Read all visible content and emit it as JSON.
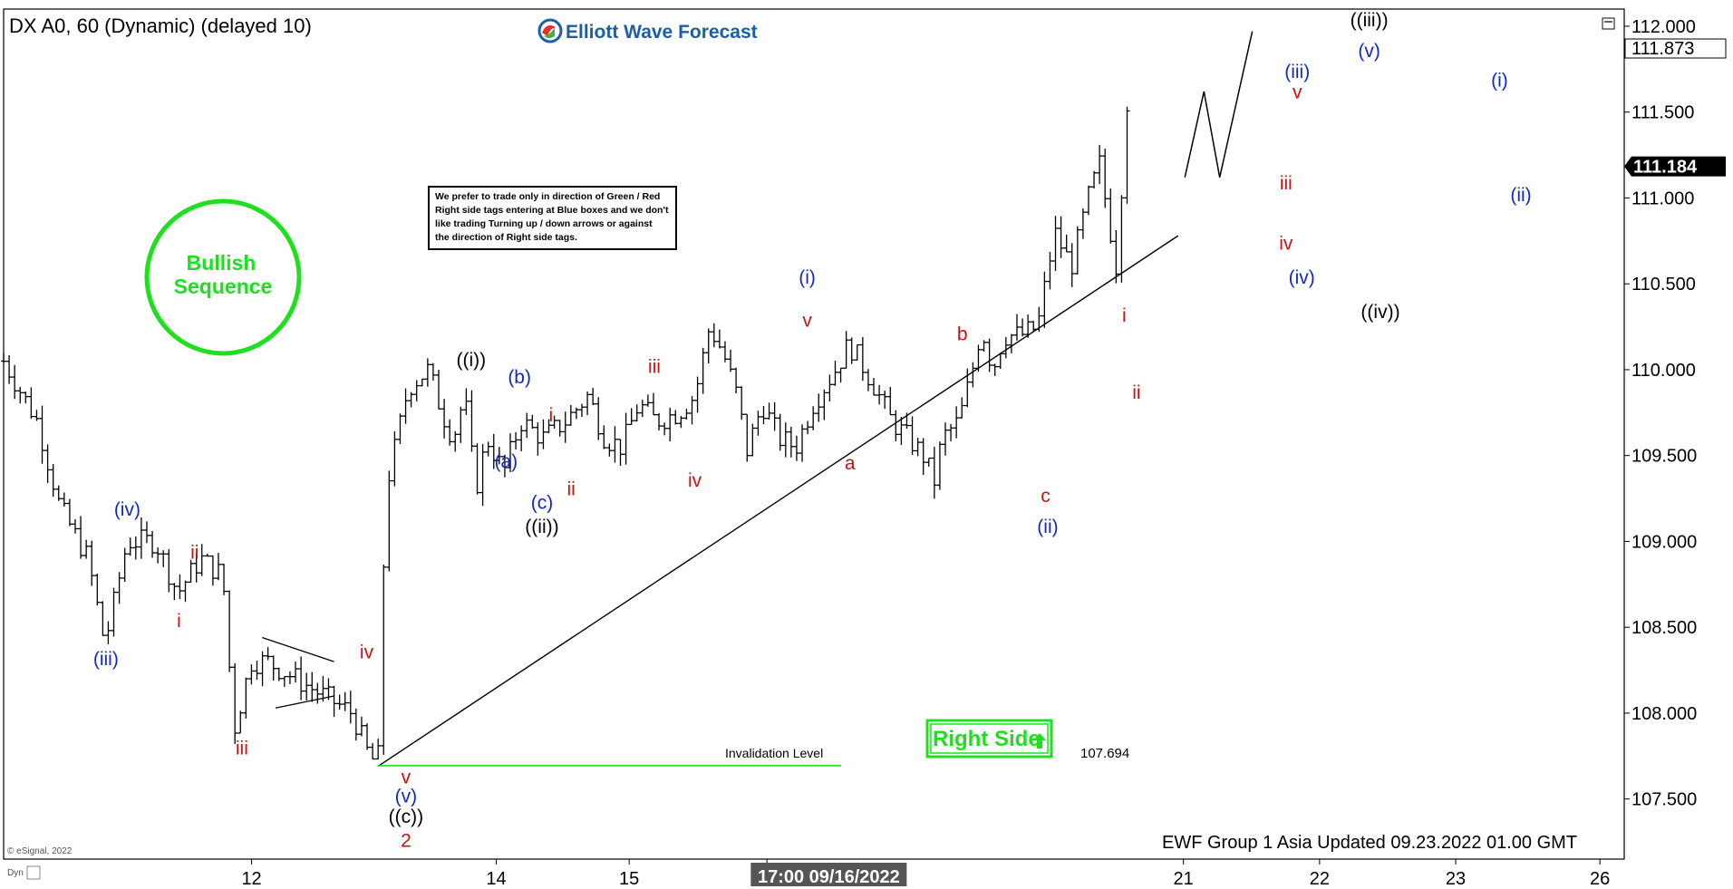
{
  "header": {
    "symbol": "DX A0, 60 (Dynamic) (delayed 10)",
    "brand": "Elliott Wave Forecast"
  },
  "note": [
    "We prefer to trade only in direction of Green / Red",
    "Right side tags entering at Blue boxes and we don't",
    "like trading Turning up / down arrows or against",
    "the direction of Right side tags."
  ],
  "badge": {
    "line1": "Bullish",
    "line2": "Sequence",
    "color": "#1ee01e"
  },
  "right_side": {
    "label": "Right Side",
    "arrow": "up-arrow-icon"
  },
  "invalidation": {
    "label": "Invalidation Level",
    "value": "107.694"
  },
  "footer": {
    "updated": "EWF Group 1 Asia Updated 09.23.2022 01.00 GMT",
    "copyright": "© eSignal, 2022",
    "corner": "Dyn"
  },
  "colors": {
    "wave_blue": "#1428c8",
    "wave_red": "#d01010",
    "wave_black": "#000000",
    "green": "#1ee01e",
    "price_tag_bg": "#000000"
  },
  "chart_data": {
    "type": "bar",
    "title": "DX A0, 60 (Dynamic) (delayed 10)",
    "ylim": [
      107.15,
      112.1
    ],
    "yticks": [
      "112.000",
      "111.500",
      "111.000",
      "110.500",
      "110.000",
      "109.500",
      "109.000",
      "108.500",
      "108.000",
      "107.500"
    ],
    "ytick_values": [
      112.0,
      111.5,
      111.0,
      110.5,
      110.0,
      109.5,
      109.0,
      108.5,
      108.0,
      107.5
    ],
    "xticks": [
      {
        "label": "12",
        "t": 0.153
      },
      {
        "label": "14",
        "t": 0.304
      },
      {
        "label": "15",
        "t": 0.386
      },
      {
        "label": "16",
        "t": 0.471
      },
      {
        "label": "21",
        "t": 0.728
      },
      {
        "label": "22",
        "t": 0.812
      },
      {
        "label": "23",
        "t": 0.896
      },
      {
        "label": "26",
        "t": 0.985
      }
    ],
    "crosshair_label": "17:00 09/16/2022",
    "crosshair_t": 0.536,
    "last_price": "111.184",
    "last_price_value": 111.184,
    "high_price": "111.873",
    "high_price_value": 111.873,
    "price_path": [
      [
        0.0,
        110.05
      ],
      [
        0.03,
        109.7
      ],
      [
        0.05,
        109.2
      ],
      [
        0.075,
        108.9
      ],
      [
        0.09,
        108.4
      ],
      [
        0.11,
        109.0
      ],
      [
        0.135,
        109.0
      ],
      [
        0.155,
        108.7
      ],
      [
        0.175,
        108.9
      ],
      [
        0.195,
        108.8
      ],
      [
        0.205,
        107.9
      ],
      [
        0.22,
        108.3
      ],
      [
        0.235,
        108.3
      ],
      [
        0.26,
        108.2
      ],
      [
        0.285,
        108.1
      ],
      [
        0.31,
        108.0
      ],
      [
        0.325,
        107.75
      ],
      [
        0.333,
        107.7
      ],
      [
        0.34,
        109.3
      ],
      [
        0.36,
        109.9
      ],
      [
        0.378,
        110.0
      ],
      [
        0.39,
        109.75
      ],
      [
        0.4,
        109.6
      ],
      [
        0.41,
        109.85
      ],
      [
        0.42,
        109.3
      ],
      [
        0.43,
        109.6
      ],
      [
        0.445,
        109.4
      ],
      [
        0.46,
        109.7
      ],
      [
        0.48,
        109.6
      ],
      [
        0.5,
        109.7
      ],
      [
        0.52,
        109.85
      ],
      [
        0.535,
        109.6
      ],
      [
        0.55,
        109.55
      ],
      [
        0.565,
        109.8
      ],
      [
        0.58,
        109.7
      ],
      [
        0.6,
        109.75
      ],
      [
        0.615,
        109.85
      ],
      [
        0.628,
        110.25
      ],
      [
        0.64,
        110.1
      ],
      [
        0.655,
        109.8
      ],
      [
        0.66,
        109.5
      ],
      [
        0.675,
        109.8
      ],
      [
        0.69,
        109.6
      ],
      [
        0.705,
        109.55
      ],
      [
        0.72,
        109.8
      ],
      [
        0.74,
        110.0
      ],
      [
        0.752,
        110.15
      ],
      [
        0.762,
        110.05
      ],
      [
        0.775,
        109.9
      ],
      [
        0.79,
        109.7
      ],
      [
        0.805,
        109.6
      ],
      [
        0.818,
        109.5
      ],
      [
        0.828,
        109.35
      ],
      [
        0.835,
        109.6
      ],
      [
        0.85,
        109.7
      ],
      [
        0.862,
        110.0
      ],
      [
        0.87,
        110.25
      ],
      [
        0.88,
        110.0
      ],
      [
        0.89,
        110.2
      ],
      [
        0.905,
        110.2
      ],
      [
        0.92,
        110.25
      ],
      [
        0.935,
        110.8
      ],
      [
        0.95,
        110.6
      ],
      [
        0.965,
        111.0
      ],
      [
        0.975,
        111.2
      ],
      [
        0.99,
        110.6
      ],
      [
        1.0,
        111.6
      ]
    ],
    "trendline": {
      "from": [
        0.333,
        107.69
      ],
      "to": [
        1.045,
        110.78
      ]
    },
    "invalidation_line": {
      "from": [
        0.333,
        107.694
      ],
      "to": [
        0.745,
        107.694
      ]
    },
    "triangle": {
      "upper": {
        "from": [
          0.23,
          108.44
        ],
        "to": [
          0.294,
          108.3
        ]
      },
      "lower": {
        "from": [
          0.242,
          108.03
        ],
        "to": [
          0.294,
          108.1
        ]
      }
    },
    "projection": [
      [
        1.051,
        111.12
      ],
      [
        1.068,
        111.62
      ],
      [
        1.082,
        111.12
      ],
      [
        1.111,
        111.97
      ]
    ],
    "labels": [
      {
        "text": "(iii)",
        "t": 0.091,
        "v": 108.28,
        "color": "blue"
      },
      {
        "text": "(iv)",
        "t": 0.11,
        "v": 109.15,
        "color": "blue"
      },
      {
        "text": "ii",
        "t": 0.17,
        "v": 108.9,
        "color": "red"
      },
      {
        "text": "i",
        "t": 0.156,
        "v": 108.5,
        "color": "red"
      },
      {
        "text": "iii",
        "t": 0.212,
        "v": 107.76,
        "color": "red"
      },
      {
        "text": "iv",
        "t": 0.323,
        "v": 108.32,
        "color": "red"
      },
      {
        "text": "v",
        "t": 0.358,
        "v": 107.59,
        "color": "red"
      },
      {
        "text": "(v)",
        "t": 0.358,
        "v": 107.48,
        "color": "blue"
      },
      {
        "text": "((c))",
        "t": 0.358,
        "v": 107.36,
        "color": "black"
      },
      {
        "text": "2",
        "t": 0.358,
        "v": 107.22,
        "color": "red"
      },
      {
        "text": "((i))",
        "t": 0.416,
        "v": 110.02,
        "color": "black"
      },
      {
        "text": "(b)",
        "t": 0.459,
        "v": 109.92,
        "color": "blue"
      },
      {
        "text": "i",
        "t": 0.487,
        "v": 109.7,
        "color": "red"
      },
      {
        "text": "(a)",
        "t": 0.447,
        "v": 109.43,
        "color": "blue"
      },
      {
        "text": "(c)",
        "t": 0.479,
        "v": 109.19,
        "color": "blue"
      },
      {
        "text": "ii",
        "t": 0.505,
        "v": 109.27,
        "color": "red"
      },
      {
        "text": "((ii))",
        "t": 0.479,
        "v": 109.05,
        "color": "black"
      },
      {
        "text": "iii",
        "t": 0.579,
        "v": 109.98,
        "color": "red"
      },
      {
        "text": "iv",
        "t": 0.615,
        "v": 109.32,
        "color": "red"
      },
      {
        "text": "(i)",
        "t": 0.715,
        "v": 110.5,
        "color": "blue"
      },
      {
        "text": "v",
        "t": 0.715,
        "v": 110.25,
        "color": "red"
      },
      {
        "text": "a",
        "t": 0.753,
        "v": 109.42,
        "color": "red"
      },
      {
        "text": "b",
        "t": 0.853,
        "v": 110.17,
        "color": "red"
      },
      {
        "text": "c",
        "t": 0.927,
        "v": 109.23,
        "color": "red"
      },
      {
        "text": "(ii)",
        "t": 0.929,
        "v": 109.05,
        "color": "blue"
      },
      {
        "text": "i",
        "t": 0.997,
        "v": 110.28,
        "color": "red"
      },
      {
        "text": "ii",
        "t": 1.008,
        "v": 109.83,
        "color": "red"
      },
      {
        "text": "iii",
        "t": 1.141,
        "v": 111.05,
        "color": "red"
      },
      {
        "text": "iv",
        "t": 1.141,
        "v": 110.7,
        "color": "red"
      },
      {
        "text": "(iii)",
        "t": 1.151,
        "v": 111.7,
        "color": "blue"
      },
      {
        "text": "v",
        "t": 1.151,
        "v": 111.58,
        "color": "red"
      },
      {
        "text": "(iv)",
        "t": 1.155,
        "v": 110.5,
        "color": "blue"
      },
      {
        "text": "((iii))",
        "t": 1.215,
        "v": 112.0,
        "color": "black"
      },
      {
        "text": "(v)",
        "t": 1.215,
        "v": 111.82,
        "color": "blue"
      },
      {
        "text": "((iv))",
        "t": 1.225,
        "v": 110.3,
        "color": "black"
      },
      {
        "text": "(i)",
        "t": 1.331,
        "v": 111.65,
        "color": "blue"
      },
      {
        "text": "(ii)",
        "t": 1.35,
        "v": 110.98,
        "color": "blue"
      }
    ]
  }
}
